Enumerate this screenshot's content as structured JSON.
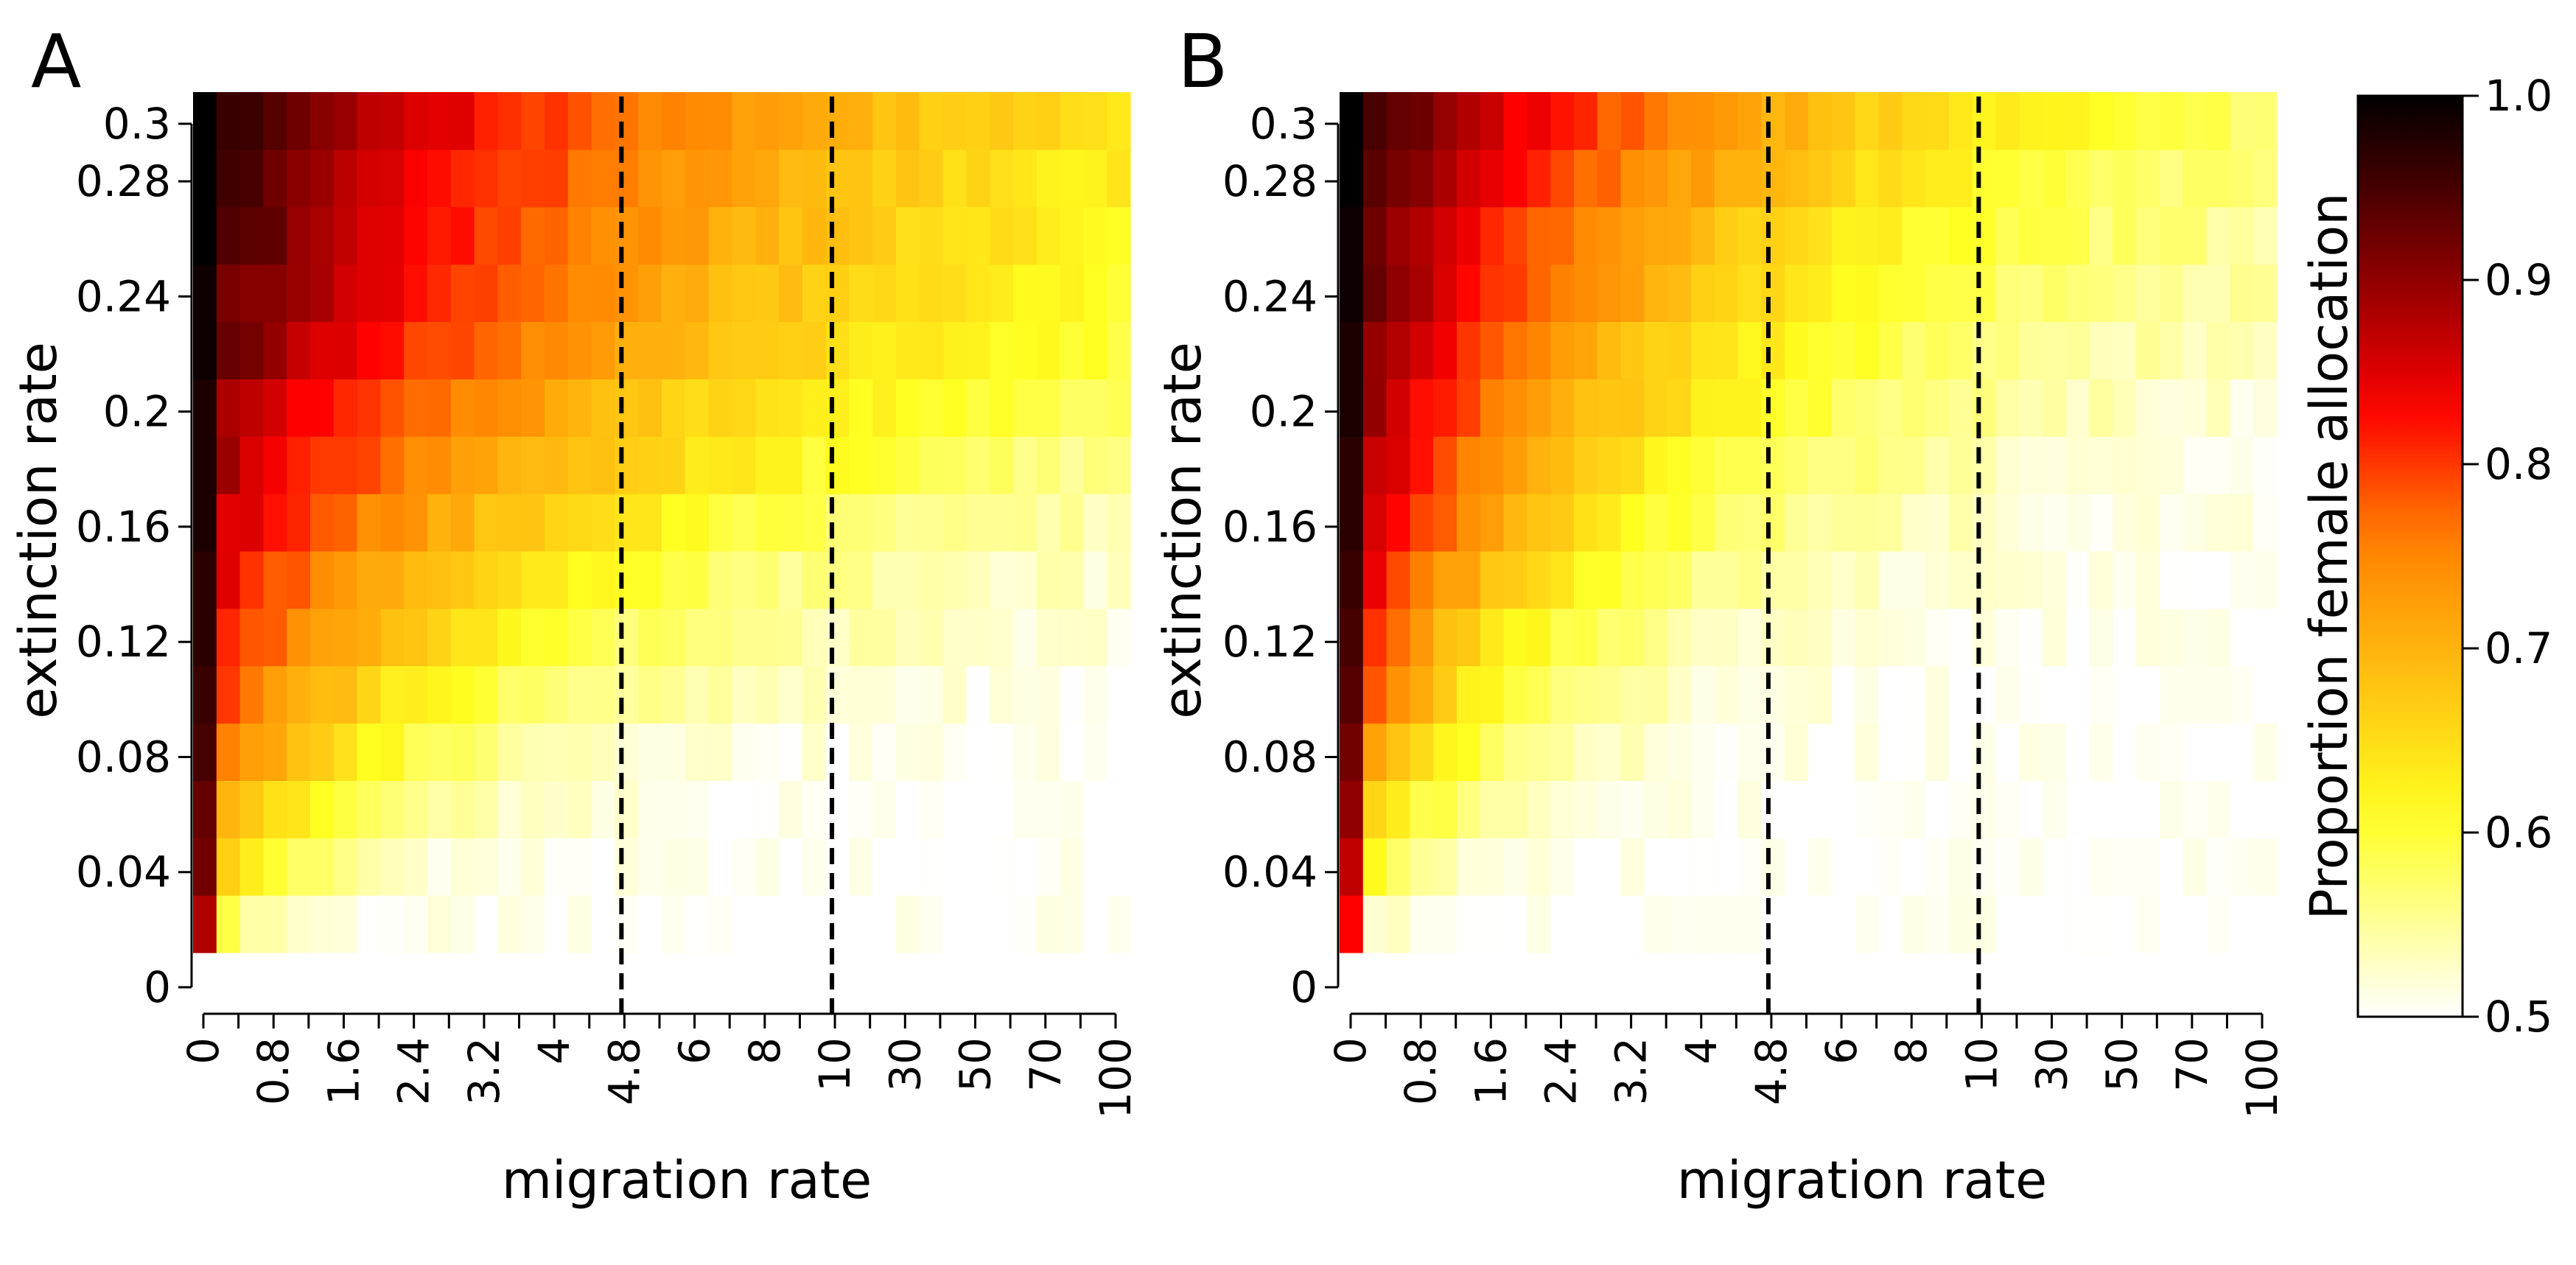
{
  "chart_data": [
    {
      "type": "heatmap",
      "panel_label": "A",
      "xlabel": "migration rate",
      "ylabel": "extinction rate",
      "x_tick_labels": [
        "0",
        "0.8",
        "1.6",
        "2.4",
        "3.2",
        "4",
        "4.8",
        "6",
        "8",
        "10",
        "30",
        "50",
        "70",
        "100"
      ],
      "y_tick_labels": [
        "0",
        "0.04",
        "0.08",
        "0.12",
        "0.16",
        "0.2",
        "0.24",
        "0.28",
        "0.3"
      ],
      "dashed_lines_at_x": [
        "4.8",
        "10"
      ],
      "value_range": [
        0.5,
        1.0
      ],
      "grid_shape": {
        "columns": 40,
        "rows": 15
      },
      "description_params": {
        "base_value": 0.5,
        "first_column_values": [
          0.88,
          0.92,
          0.93,
          0.95,
          0.96,
          0.97,
          0.97,
          0.98,
          0.98,
          0.98,
          0.99,
          0.99,
          1.0,
          1.0,
          1.0
        ],
        "decay_columns": [
          3,
          4.5,
          6,
          8,
          10,
          12,
          14,
          17,
          20,
          23,
          25,
          27,
          28,
          30,
          32
        ],
        "initial_drop": [
          0.3,
          0.26,
          0.22,
          0.19,
          0.17,
          0.15,
          0.13,
          0.12,
          0.1,
          0.09,
          0.07,
          0.06,
          0.05,
          0.05,
          0.04
        ]
      }
    },
    {
      "type": "heatmap",
      "panel_label": "B",
      "xlabel": "migration rate",
      "ylabel": "extinction rate",
      "x_tick_labels": [
        "0",
        "0.8",
        "1.6",
        "2.4",
        "3.2",
        "4",
        "4.8",
        "6",
        "8",
        "10",
        "30",
        "50",
        "70",
        "100"
      ],
      "y_tick_labels": [
        "0",
        "0.04",
        "0.08",
        "0.12",
        "0.16",
        "0.2",
        "0.24",
        "0.28",
        "0.3"
      ],
      "dashed_lines_at_x": [
        "4.8",
        "10"
      ],
      "value_range": [
        0.5,
        1.0
      ],
      "grid_shape": {
        "columns": 40,
        "rows": 15
      },
      "description_params": {
        "base_value": 0.5,
        "first_column_values": [
          0.83,
          0.87,
          0.9,
          0.92,
          0.94,
          0.95,
          0.96,
          0.97,
          0.97,
          0.98,
          0.98,
          0.99,
          0.99,
          1.0,
          1.0
        ],
        "decay_columns": [
          2,
          3,
          4,
          5,
          6,
          7,
          8.5,
          10,
          11.5,
          13,
          14.5,
          16,
          17.5,
          19,
          21
        ],
        "initial_drop": [
          0.3,
          0.26,
          0.23,
          0.2,
          0.17,
          0.15,
          0.13,
          0.11,
          0.1,
          0.09,
          0.08,
          0.07,
          0.06,
          0.05,
          0.04
        ]
      }
    }
  ],
  "colorbar": {
    "title": "Proportion female allocation",
    "tick_labels": [
      "0.5",
      "0.6",
      "0.7",
      "0.8",
      "0.9",
      "1.0"
    ],
    "tick_values": [
      0.5,
      0.6,
      0.7,
      0.8,
      0.9,
      1.0
    ],
    "range": [
      0.5,
      1.0
    ],
    "colors": {
      "low": "#ffffff",
      "mid_low": "#ffff20",
      "mid": "#ff8000",
      "mid_high": "#ff0000",
      "high_dark": "#800000",
      "high": "#000000"
    }
  }
}
